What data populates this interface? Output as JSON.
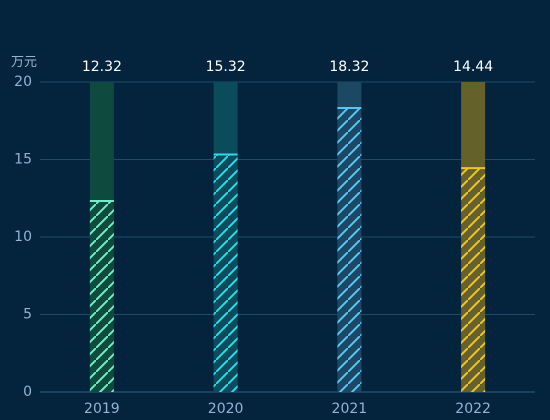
{
  "chart_data": {
    "type": "bar",
    "unit_label": "万元",
    "categories": [
      "2019",
      "2020",
      "2021",
      "2022"
    ],
    "values": [
      12.32,
      15.32,
      18.32,
      14.44
    ],
    "value_labels": [
      "12.32",
      "15.32",
      "18.32",
      "14.44"
    ],
    "y_ticks": [
      "0",
      "5",
      "10",
      "15",
      "20"
    ],
    "ylim": [
      0,
      20
    ],
    "grid": true,
    "background_value": 20,
    "colors": {
      "bars": [
        "#6ef0c4",
        "#2ed8e6",
        "#57c5f6",
        "#f1c232"
      ],
      "backgrounds": [
        "#0e4a3d",
        "#0b4c5c",
        "#1c4863",
        "#65612a"
      ]
    }
  }
}
